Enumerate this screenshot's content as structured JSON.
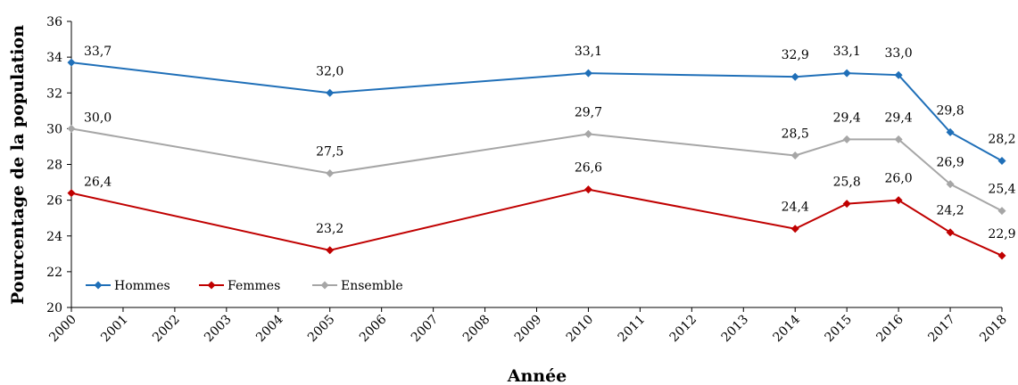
{
  "chart_data": {
    "type": "line",
    "title": "",
    "xlabel": "Année",
    "ylabel": "Pourcentage de la population",
    "ylim": [
      20,
      36
    ],
    "yticks": [
      20,
      22,
      24,
      26,
      28,
      30,
      32,
      34,
      36
    ],
    "categories": [
      "2000",
      "2001",
      "2002",
      "2003",
      "2004",
      "2005",
      "2006",
      "2007",
      "2008",
      "2009",
      "2010",
      "2011",
      "2012",
      "2013",
      "2014",
      "2015",
      "2016",
      "2017",
      "2018"
    ],
    "legend_position": "bottom-left",
    "grid": false,
    "series": [
      {
        "name": "Hommes",
        "color": "#1f6fb8",
        "x": [
          "2000",
          "2005",
          "2010",
          "2014",
          "2015",
          "2016",
          "2017",
          "2018"
        ],
        "values": [
          33.7,
          32.0,
          33.1,
          32.9,
          33.1,
          33.0,
          29.8,
          28.2
        ],
        "labels": [
          "33,7",
          "32,0",
          "33,1",
          "32,9",
          "33,1",
          "33,0",
          "29,8",
          "28,2"
        ]
      },
      {
        "name": "Femmes",
        "color": "#c00000",
        "x": [
          "2000",
          "2005",
          "2010",
          "2014",
          "2015",
          "2016",
          "2017",
          "2018"
        ],
        "values": [
          26.4,
          23.2,
          26.6,
          24.4,
          25.8,
          26.0,
          24.2,
          22.9
        ],
        "labels": [
          "26,4",
          "23,2",
          "26,6",
          "24,4",
          "25,8",
          "26,0",
          "24,2",
          "22,9"
        ]
      },
      {
        "name": "Ensemble",
        "color": "#a6a6a6",
        "x": [
          "2000",
          "2005",
          "2010",
          "2014",
          "2015",
          "2016",
          "2017",
          "2018"
        ],
        "values": [
          30.0,
          27.5,
          29.7,
          28.5,
          29.4,
          29.4,
          26.9,
          25.4
        ],
        "labels": [
          "30,0",
          "27,5",
          "29,7",
          "28,5",
          "29,4",
          "29,4",
          "26,9",
          "25,4"
        ]
      }
    ]
  }
}
